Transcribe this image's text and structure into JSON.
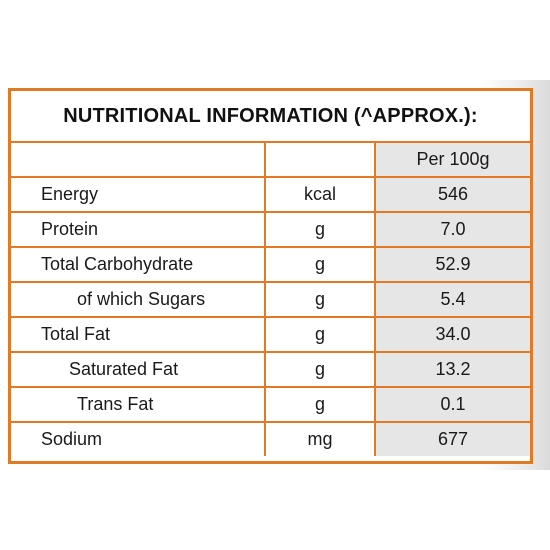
{
  "panel": {
    "title": "NUTRITIONAL INFORMATION (^APPROX.):",
    "column_header": "Per 100g",
    "border_color": "#e07a24"
  },
  "rows": [
    {
      "name": "Energy",
      "unit": "kcal",
      "value": "546"
    },
    {
      "name": "Protein",
      "unit": "g",
      "value": "7.0"
    },
    {
      "name": "Total Carbohydrate",
      "unit": "g",
      "value": "52.9"
    },
    {
      "name": "of which Sugars",
      "unit": "g",
      "value": "5.4"
    },
    {
      "name": "Total Fat",
      "unit": "g",
      "value": "34.0"
    },
    {
      "name": "Saturated Fat",
      "unit": "g",
      "value": "13.2"
    },
    {
      "name": "Trans Fat",
      "unit": "g",
      "value": "0.1"
    },
    {
      "name": "Sodium",
      "unit": "mg",
      "value": "677"
    }
  ]
}
